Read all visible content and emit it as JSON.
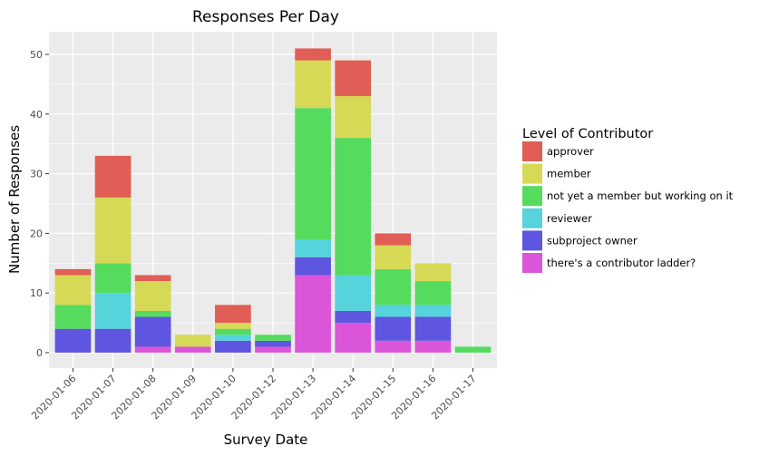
{
  "chart_data": {
    "type": "bar",
    "stacked": true,
    "title": "Responses Per Day",
    "xlabel": "Survey Date",
    "ylabel": "Number of Responses",
    "ylim": [
      0,
      53
    ],
    "yticks": [
      0,
      10,
      20,
      30,
      40,
      50
    ],
    "grid": true,
    "legend_title": "Level of Contributor",
    "legend_position": "right",
    "categories": [
      "2020-01-06",
      "2020-01-07",
      "2020-01-08",
      "2020-01-09",
      "2020-01-10",
      "2020-01-12",
      "2020-01-13",
      "2020-01-14",
      "2020-01-15",
      "2020-01-16",
      "2020-01-17"
    ],
    "series": [
      {
        "name": "there's a contributor ladder?",
        "color": "#db55d9",
        "values": [
          0,
          0,
          1,
          1,
          0,
          1,
          13,
          5,
          2,
          2,
          0
        ]
      },
      {
        "name": "subproject owner",
        "color": "#5e55e0",
        "values": [
          4,
          4,
          5,
          0,
          2,
          1,
          3,
          2,
          4,
          4,
          0
        ]
      },
      {
        "name": "reviewer",
        "color": "#56d3db",
        "values": [
          0,
          6,
          0,
          0,
          1,
          0,
          3,
          6,
          2,
          2,
          0
        ]
      },
      {
        "name": "not yet a member but working on it",
        "color": "#55db5e",
        "values": [
          4,
          5,
          1,
          0,
          1,
          1,
          22,
          23,
          6,
          4,
          1
        ]
      },
      {
        "name": "member",
        "color": "#d6d955",
        "values": [
          5,
          11,
          5,
          2,
          1,
          0,
          8,
          7,
          4,
          3,
          0
        ]
      },
      {
        "name": "approver",
        "color": "#e05e55",
        "values": [
          1,
          7,
          1,
          0,
          3,
          0,
          2,
          6,
          2,
          0,
          0
        ]
      }
    ],
    "legend_order": [
      "approver",
      "member",
      "not yet a member but working on it",
      "reviewer",
      "subproject owner",
      "there's a contributor ladder?"
    ]
  }
}
